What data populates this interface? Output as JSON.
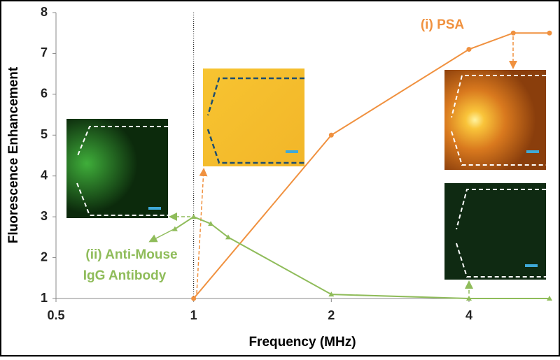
{
  "chart_data": {
    "type": "line",
    "xlabel": "Frequency (MHz)",
    "ylabel": "Fluorescence  Enhancement",
    "x_log_scale": true,
    "xlim": [
      0.5,
      6
    ],
    "xticks": [
      0.5,
      1,
      2,
      4
    ],
    "ylim": [
      1,
      8
    ],
    "yticks": [
      1,
      2,
      3,
      4,
      5,
      6,
      7,
      8
    ],
    "reference_line_x": 1,
    "series": [
      {
        "name": "(i) PSA",
        "color": "#f0913f",
        "marker": "circle",
        "x": [
          1,
          2,
          4,
          5,
          6
        ],
        "values": [
          1.0,
          5.0,
          7.1,
          7.5,
          7.5
        ]
      },
      {
        "name": [
          "(ii) Anti-Mouse",
          "IgG Antibody"
        ],
        "color": "#8fbc5a",
        "marker": "triangle",
        "x": [
          0.91,
          1,
          1.09,
          1.19,
          2,
          4,
          6
        ],
        "values": [
          2.7,
          3.0,
          2.83,
          2.5,
          1.1,
          1.0,
          1.0
        ]
      }
    ]
  }
}
